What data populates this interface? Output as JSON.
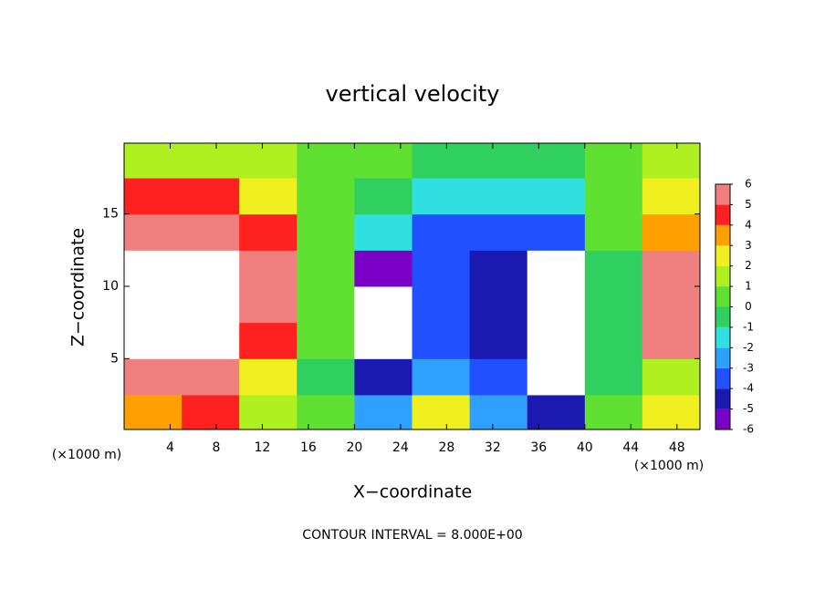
{
  "chart_data": {
    "type": "heatmap",
    "title": "vertical velocity",
    "x_label": "X−coordinate",
    "y_label": "Z−coordinate",
    "x_unit": "(×1000 m)",
    "note": "CONTOUR INTERVAL = 8.000E+00",
    "xlim": [
      0,
      50
    ],
    "ylim": [
      0.1,
      19.9
    ],
    "xticks": [
      4,
      8,
      12,
      16,
      20,
      24,
      28,
      32,
      36,
      40,
      44,
      48
    ],
    "yticks": [
      5,
      10,
      15
    ],
    "x": [
      2.5,
      7.5,
      12.5,
      17.5,
      22.5,
      27.5,
      32.5,
      37.5,
      42.5,
      47.5
    ],
    "y": [
      1.25,
      3.75,
      6.25,
      8.75,
      11.25,
      13.75,
      16.25,
      18.75
    ],
    "z": [
      [
        3,
        4,
        1,
        0,
        -3,
        2,
        -3,
        -5,
        0,
        2
      ],
      [
        5,
        6,
        2,
        -1,
        -5,
        -3,
        -4,
        -8,
        -1,
        1
      ],
      [
        7,
        8,
        4,
        0,
        -8,
        -4,
        -5,
        -8,
        -1,
        5
      ],
      [
        8,
        8,
        6,
        0,
        -8,
        -4,
        -5,
        -8,
        -1,
        6
      ],
      [
        8,
        8,
        5,
        0,
        -6,
        -4,
        -5,
        -8,
        -1,
        5
      ],
      [
        6,
        6,
        4,
        0,
        -2,
        -4,
        -4,
        -4,
        0,
        3
      ],
      [
        4,
        4,
        2,
        0,
        -1,
        -2,
        -2,
        -2,
        0,
        2
      ],
      [
        1,
        1,
        1,
        0,
        0,
        -1,
        -1,
        -1,
        0,
        1
      ]
    ],
    "colorbar_ticks": [
      -6,
      -5,
      -4,
      -3,
      -2,
      -1,
      0,
      1,
      2,
      3,
      4,
      5,
      6
    ],
    "colors": [
      "#7a00c8",
      "#1a1ab0",
      "#2050ff",
      "#30a0ff",
      "#30e0e0",
      "#30d060",
      "#60e030",
      "#b0f020",
      "#f0f020",
      "#ffa000",
      "#ff2020",
      "#f08080"
    ],
    "out_of_range_color": "#ffffff"
  }
}
